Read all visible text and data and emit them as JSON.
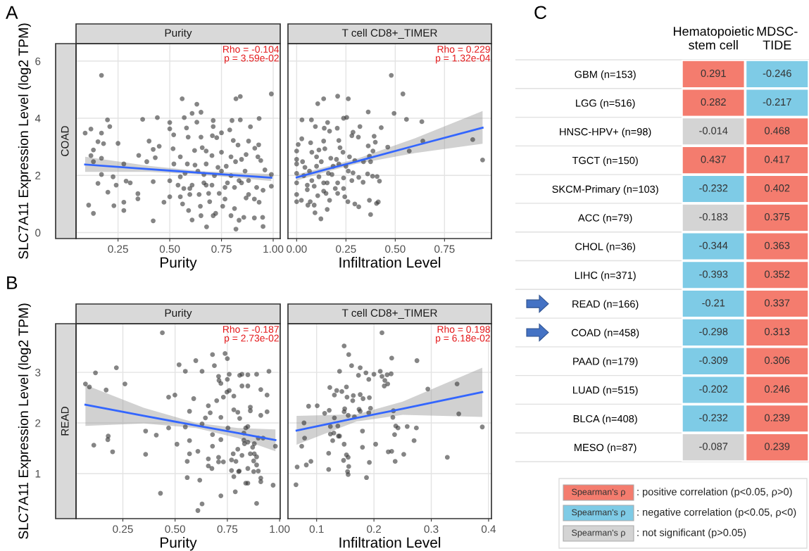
{
  "chart_data": [
    {
      "type": "scatter",
      "title": "A",
      "subtitle": "Purity",
      "xlabel": "Purity",
      "ylabel": "SLC7A11 Expression Level (log2 TPM)",
      "annotations": [
        "Rho = -0.104\np = 3.59e-02",
        "COAD"
      ],
      "xlim": [
        0.047,
        1.034
      ],
      "ylim": [
        -0.21,
        6.61
      ],
      "xticks": [
        {
          "value": 0.25,
          "label": "0.25"
        },
        {
          "value": 0.5,
          "label": "0.50"
        },
        {
          "value": 0.75,
          "label": "0.75"
        },
        {
          "value": 1.0,
          "label": "1.00"
        }
      ],
      "yticks": [
        0,
        2,
        4,
        6
      ],
      "grid": true,
      "series": [
        {
          "type": "scatter",
          "color": "#333333",
          "marker": "circle",
          "x": [
            0.091,
            0.119,
            0.17,
            0.17,
            0.199,
            0.21,
            0.131,
            0.153,
            0.18,
            0.25,
            0.17,
            0.119,
            0.131,
            0.17,
            0.153,
            0.201,
            0.226,
            0.241,
            0.108,
            0.131,
            0.23,
            0.278,
            0.278,
            0.289,
            0.309,
            0.278,
            0.35,
            0.369,
            0.4,
            0.389,
            0.346,
            0.346,
            0.42,
            0.42,
            0.44,
            0.42,
            0.449,
            0.43,
            0.472,
            0.5,
            0.5,
            0.519,
            0.5,
            0.5,
            0.52,
            0.516,
            0.56,
            0.57,
            0.581,
            0.589,
            0.551,
            0.551,
            0.54,
            0.551,
            0.562,
            0.591,
            0.608,
            0.608,
            0.631,
            0.651,
            0.631,
            0.651,
            0.657,
            0.62,
            0.622,
            0.608,
            0.597,
            0.648,
            0.651,
            0.678,
            0.676,
            0.71,
            0.71,
            0.706,
            0.727,
            0.75,
            0.79,
            0.801,
            0.82,
            0.841,
            0.841,
            0.89,
            0.932,
            0.991,
            0.807,
            0.83,
            0.881,
            0.93,
            0.911,
            0.926,
            0.94,
            0.96,
            0.991,
            0.991,
            0.951,
            0.92,
            0.881,
            0.869,
            0.858,
            0.82,
            0.835,
            0.909,
            0.949,
            0.951,
            0.932,
            0.909,
            0.813,
            0.796,
            0.767,
            0.756,
            0.739,
            0.722,
            0.71,
            0.693,
            0.704,
            0.676,
            0.75,
            0.733,
            0.716,
            0.773,
            0.796,
            0.818,
            0.847,
            0.864,
            0.847,
            0.813,
            0.779,
            0.767,
            0.796,
            0.835,
            0.881,
            0.869,
            0.75,
            0.704,
            0.676,
            0.665,
            0.636,
            0.585,
            0.574,
            0.568,
            0.597,
            0.642,
            0.665,
            0.688
          ],
          "values": [
            3.48,
            3.62,
            5.5,
            3.48,
            3.94,
            3.71,
            2.89,
            3.18,
            3.11,
            3.12,
            2.6,
            2.69,
            2.48,
            2.03,
            1.72,
            1.41,
            1.95,
            1.66,
            0.96,
            0.67,
            0.94,
            1.06,
            0.77,
            1.8,
            1.74,
            2.4,
            2.7,
            3.96,
            3.2,
            2.48,
            1.18,
            1.36,
            0.41,
            1.78,
            4.02,
            2.91,
            3.02,
            2.62,
            1.06,
            3.85,
            3.63,
            3.42,
            1.81,
            1.25,
            2.4,
            2.93,
            4.68,
            4.02,
            3.66,
            3.34,
            2.65,
            1.95,
            1.66,
            1.25,
            1.0,
            0.77,
            0.44,
            4.17,
            4.49,
            4.21,
            3.86,
            3.34,
            2.97,
            2.87,
            2.36,
            1.66,
            1.33,
            0.92,
            0.59,
            0.2,
            2.85,
            3.92,
            3.71,
            3.39,
            3.32,
            3.49,
            3.59,
            3.92,
            4.68,
            4.76,
            3.94,
            3.7,
            3.99,
            4.85,
            3.22,
            3.06,
            3.2,
            3.07,
            2.95,
            2.65,
            2.52,
            2.19,
            2.03,
            1.62,
            1.48,
            1.58,
            1.33,
            1.21,
            0.53,
            0.12,
            0.43,
            0.51,
            0.53,
            0.21,
            1.06,
            1.17,
            0.84,
            0.59,
            1.17,
            0.92,
            1.37,
            0.67,
            0.59,
            1.08,
            1.66,
            1.66,
            2.15,
            2.28,
            1.99,
            2.32,
            2.65,
            2.48,
            2.56,
            2.15,
            1.74,
            1.58,
            1.74,
            1.58,
            1.99,
            1.82,
            1.82,
            2.73,
            2.81,
            2.69,
            2.4,
            2.03,
            2.15,
            2.4,
            2.07,
            1.54,
            1.54,
            1.33,
            1.74,
            1.37
          ]
        },
        {
          "type": "line",
          "color": "#3366ff",
          "x": [
            0.091,
            0.4,
            0.65,
            0.991
          ],
          "values": [
            2.38,
            2.22,
            2.09,
            1.92
          ],
          "lower": [
            2.12,
            2.12,
            2.03,
            1.8
          ],
          "upper": [
            2.65,
            2.33,
            2.15,
            2.05
          ]
        }
      ]
    },
    {
      "type": "scatter",
      "subtitle": "T cell CD8+_TIMER",
      "xlabel": "Infiltration Level",
      "annotations": [
        "Rho = 0.229\np = 1.32e-04"
      ],
      "xlim": [
        -0.044,
        0.988
      ],
      "ylim": [
        -0.21,
        6.61
      ],
      "xticks": [
        {
          "value": 0,
          "label": "0.00"
        },
        {
          "value": 0.25,
          "label": "0.25"
        },
        {
          "value": 0.5,
          "label": "0.50"
        },
        {
          "value": 0.75,
          "label": "0.75"
        }
      ],
      "yticks": [
        0,
        2,
        4,
        6
      ],
      "grid": true,
      "tick_labels": "x",
      "series": [
        {
          "type": "scatter",
          "color": "#333333",
          "marker": "circle",
          "x": [
            0.48,
            0.539,
            0.494,
            0.363,
            0.557,
            0.635,
            0.429,
            0.321,
            0.107,
            0.137,
            0.208,
            0.262,
            0.027,
            0.075,
            0.238,
            0.254,
            0.095,
            0.14,
            0.157,
            0.206,
            0.167,
            0.026,
            0.008,
            0.071,
            0.137,
            0.214,
            0.28,
            0.286,
            0.313,
            0.393,
            0.399,
            0.363,
            0.462,
            0.571,
            0.64,
            0.893,
            0.943,
            0.375,
            0.369,
            0.387,
            0.295,
            0.262,
            0.286,
            0.315,
            0.337,
            0.36,
            0.385,
            0.408,
            0.42,
            0.375,
            0.369,
            0.405,
            0.414,
            0.315,
            0.295,
            0.26,
            0.244,
            0.208,
            0.167,
            0.155,
            0.123,
            0.093,
            0.057,
            0.0,
            0.0,
            0.0,
            0.0,
            0.0,
            0.0,
            0.0,
            0.03,
            0.042,
            0.065,
            0.054,
            0.089,
            0.107,
            0.137,
            0.161,
            0.185,
            0.202,
            0.235,
            0.22,
            0.101,
            0.113,
            0.143,
            0.077,
            0.179,
            0.208,
            0.238,
            0.196,
            0.137,
            0.077,
            0.036,
            0.101,
            0.125,
            0.173,
            0.214,
            0.268,
            0.25,
            0.339,
            0.28,
            0.238,
            0.155,
            0.113,
            0.054,
            0.024,
            0.069,
            0.089,
            0.149
          ],
          "values": [
            5.5,
            4.85,
            4.17,
            4.22,
            3.96,
            3.88,
            3.67,
            3.71,
            4.51,
            4.68,
            4.77,
            4.68,
            3.94,
            3.94,
            4.0,
            4.03,
            3.71,
            3.65,
            3.85,
            3.65,
            3.55,
            3.28,
            3.08,
            3.14,
            3.2,
            3.22,
            3.39,
            3.51,
            3.34,
            3.37,
            3.16,
            3.03,
            2.99,
            2.85,
            3.2,
            3.25,
            2.54,
            2.48,
            2.67,
            2.85,
            2.52,
            2.15,
            2.09,
            1.93,
            1.76,
            2.05,
            1.97,
            1.96,
            1.8,
            0.63,
            1.13,
            1.02,
            1.07,
            0.9,
            1.0,
            1.08,
            1.25,
            1.37,
            1.13,
            0.81,
            0.48,
            0.69,
            0.96,
            1.08,
            1.33,
            1.74,
            2.07,
            2.4,
            2.56,
            2.85,
            2.48,
            2.28,
            2.15,
            1.66,
            1.62,
            1.29,
            1.74,
            2.07,
            2.32,
            2.56,
            2.81,
            2.97,
            2.65,
            2.89,
            2.93,
            2.81,
            2.03,
            1.74,
            1.91,
            1.54,
            1.45,
            1.82,
            1.99,
            2.32,
            2.48,
            2.6,
            2.4,
            2.65,
            2.32,
            2.48,
            1.82,
            1.54,
            1.74,
            1.95,
            1.5,
            1.13,
            1.08,
            0.96,
            1.37
          ]
        },
        {
          "type": "line",
          "color": "#3366ff",
          "x": [
            0.0,
            0.15,
            0.3,
            0.6,
            0.943
          ],
          "values": [
            1.93,
            2.21,
            2.48,
            3.04,
            3.67
          ],
          "lower": [
            1.82,
            2.12,
            2.4,
            2.78,
            3.11
          ],
          "upper": [
            2.03,
            2.3,
            2.57,
            3.3,
            4.25
          ]
        }
      ]
    },
    {
      "type": "scatter",
      "title": "B",
      "subtitle": "Purity",
      "xlabel": "Purity",
      "ylabel": "SLC7A11 Expression Level (log2 TPM)",
      "annotations": [
        "Rho = -0.187\np = 2.73e-02",
        "READ"
      ],
      "xlim": [
        0.026,
        1.003
      ],
      "ylim": [
        0.11,
        3.96
      ],
      "xticks": [
        {
          "value": 0.25,
          "label": "0.25"
        },
        {
          "value": 0.5,
          "label": "0.50"
        },
        {
          "value": 0.75,
          "label": "0.75"
        },
        {
          "value": 1.0,
          "label": "1.00"
        }
      ],
      "yticks": [
        1,
        2,
        3
      ],
      "grid": true,
      "series": [
        {
          "type": "scatter",
          "color": "#333333",
          "marker": "circle",
          "x": [
            0.439,
            0.071,
            0.09,
            0.119,
            0.219,
            0.26,
            0.17,
            0.111,
            0.18,
            0.178,
            0.201,
            0.359,
            0.359,
            0.41,
            0.43,
            0.469,
            0.499,
            0.469,
            0.509,
            0.519,
            0.549,
            0.549,
            0.569,
            0.569,
            0.569,
            0.558,
            0.558,
            0.589,
            0.599,
            0.629,
            0.609,
            0.618,
            0.629,
            0.609,
            0.679,
            0.688,
            0.699,
            0.659,
            0.668,
            0.645,
            0.629,
            0.679,
            0.679,
            0.659,
            0.659,
            0.676,
            0.708,
            0.71,
            0.719,
            0.75,
            0.75,
            0.759,
            0.739,
            0.731,
            0.748,
            0.759,
            0.719,
            0.719,
            0.708,
            0.708,
            0.731,
            0.719,
            0.753,
            0.781,
            0.781,
            0.8,
            0.809,
            0.809,
            0.82,
            0.848,
            0.89,
            0.949,
            0.82,
            0.848,
            0.91,
            0.94,
            0.94,
            0.91,
            0.86,
            0.86,
            0.838,
            0.848,
            0.829,
            0.829,
            0.832,
            0.848,
            0.871,
            0.879,
            0.898,
            0.921,
            0.98,
            0.969,
            0.778,
            0.8,
            0.77,
            0.791,
            0.82,
            0.86,
            0.879,
            0.89,
            0.876,
            0.89,
            0.848,
            0.876,
            0.898,
            0.91,
            0.91,
            0.848,
            0.838,
            0.788,
            0.781,
            0.804,
            0.77,
            0.89,
            0.807
          ],
          "values": [
            3.78,
            2.77,
            2.71,
            2.99,
            3.09,
            2.77,
            2.65,
            1.56,
            1.74,
            1.67,
            1.43,
            1.84,
            1.38,
            1.76,
            0.61,
            2.51,
            2.55,
            1.9,
            1.58,
            3.15,
            3.02,
            1.92,
            2.23,
            1.65,
            1.39,
            1.24,
            0.92,
            2.48,
            3.23,
            3.02,
            1.44,
            0.87,
            0.4,
            0.27,
            3.35,
            3.13,
            2.44,
            2.34,
            2.2,
            2.1,
            1.98,
            1.77,
            1.54,
            1.29,
            1.15,
            1.1,
            2.92,
            2.84,
            2.78,
            3.27,
            2.86,
            2.96,
            3.37,
            2.51,
            2.61,
            2.64,
            2.11,
            1.67,
            1.32,
            1.23,
            1.23,
            0.56,
            1.9,
            2.53,
            2.26,
            2.21,
            2.09,
            2.94,
            2.96,
            2.95,
            2.96,
            3.02,
            2.73,
            2.73,
            2.66,
            2.55,
            2.22,
            2.15,
            2.31,
            2.24,
            1.9,
            1.93,
            1.8,
            1.66,
            1.59,
            1.62,
            1.52,
            1.59,
            1.7,
            1.7,
            1.54,
            0.77,
            1.39,
            1.48,
            1.27,
            1.24,
            1.36,
            1.39,
            1.39,
            1.33,
            1.25,
            1.17,
            1.1,
            1.04,
            1.05,
            0.91,
            0.84,
            0.81,
            0.81,
            0.64,
            0.94,
            1.04,
            1.06,
            0.41,
            1.05
          ]
        },
        {
          "type": "line",
          "color": "#3366ff",
          "x": [
            0.071,
            0.35,
            0.6,
            0.8,
            0.98
          ],
          "values": [
            2.36,
            2.14,
            1.95,
            1.8,
            1.66
          ],
          "lower": [
            1.94,
            1.99,
            1.9,
            1.7,
            1.44
          ],
          "upper": [
            2.75,
            2.3,
            2.0,
            1.9,
            1.87
          ]
        }
      ]
    },
    {
      "type": "scatter",
      "subtitle": "T cell CD8+_TIMER",
      "xlabel": "Infiltration Level",
      "annotations": [
        "Rho = 0.198\np = 6.18e-02"
      ],
      "xlim": [
        0.05,
        0.405
      ],
      "ylim": [
        0.11,
        3.96
      ],
      "xticks": [
        0.1,
        0.2,
        0.3,
        0.4
      ],
      "yticks": [
        1,
        2,
        3
      ],
      "grid": true,
      "tick_labels": "x",
      "series": [
        {
          "type": "scatter",
          "color": "#333333",
          "marker": "circle",
          "x": [
            0.214,
            0.148,
            0.156,
            0.231,
            0.275,
            0.161,
            0.176,
            0.14,
            0.173,
            0.186,
            0.191,
            0.2,
            0.211,
            0.214,
            0.223,
            0.23,
            0.219,
            0.224,
            0.218,
            0.123,
            0.135,
            0.144,
            0.152,
            0.131,
            0.153,
            0.164,
            0.163,
            0.176,
            0.181,
            0.192,
            0.294,
            0.345,
            0.348,
            0.389,
            0.086,
            0.101,
            0.114,
            0.122,
            0.131,
            0.149,
            0.148,
            0.155,
            0.166,
            0.174,
            0.176,
            0.191,
            0.194,
            0.234,
            0.233,
            0.078,
            0.079,
            0.074,
            0.124,
            0.137,
            0.13,
            0.124,
            0.128,
            0.138,
            0.14,
            0.148,
            0.18,
            0.18,
            0.203,
            0.238,
            0.242,
            0.236,
            0.258,
            0.274,
            0.27,
            0.225,
            0.231,
            0.252,
            0.328,
            0.237,
            0.152,
            0.155,
            0.147,
            0.121,
            0.09,
            0.082,
            0.066,
            0.064,
            0.121,
            0.156,
            0.154,
            0.155,
            0.192,
            0.187
          ],
          "values": [
            3.78,
            3.52,
            3.35,
            3.28,
            3.23,
            3.13,
            3.09,
            3.02,
            2.94,
            2.99,
            2.86,
            2.96,
            3.02,
            2.92,
            2.95,
            2.97,
            2.84,
            2.77,
            2.73,
            2.7,
            2.64,
            2.62,
            2.71,
            2.55,
            2.51,
            2.54,
            2.44,
            2.56,
            2.48,
            2.5,
            2.67,
            2.77,
            2.18,
            1.92,
            2.33,
            2.34,
            2.19,
            2.25,
            2.1,
            2.28,
            2.22,
            2.15,
            2.12,
            2.27,
            2.23,
            2.2,
            2.29,
            2.24,
            2.11,
            2.0,
            1.7,
            1.54,
            1.93,
            1.94,
            1.8,
            1.78,
            1.65,
            1.74,
            1.74,
            1.58,
            1.84,
            1.52,
            1.58,
            1.94,
            1.9,
            1.77,
            1.93,
            1.9,
            1.65,
            1.43,
            1.44,
            1.38,
            1.32,
            1.24,
            1.37,
            1.32,
            1.26,
            1.4,
            1.24,
            1.17,
            1.13,
            0.78,
            1.08,
            1.14,
            1.04,
            0.98,
            1.22,
            0.92
          ]
        },
        {
          "type": "line",
          "color": "#3366ff",
          "x": [
            0.065,
            0.17,
            0.25,
            0.389
          ],
          "values": [
            1.85,
            2.1,
            2.28,
            2.61
          ],
          "lower": [
            1.57,
            2.03,
            2.16,
            2.12
          ],
          "upper": [
            2.14,
            2.17,
            2.42,
            3.09
          ]
        }
      ]
    },
    {
      "type": "heatmap",
      "title": "C",
      "categories": [
        "Hematopoietic\nstem cell",
        "MDSC-\nTIDE"
      ],
      "y_categories": [
        "GBM (n=153)",
        "LGG (n=516)",
        "HNSC-HPV+ (n=98)",
        "TGCT (n=150)",
        "SKCM-Primary (n=103)",
        "ACC (n=79)",
        "CHOL (n=36)",
        "LIHC (n=371)",
        "READ (n=166)",
        "COAD (n=458)",
        "PAAD (n=179)",
        "LUAD (n=515)",
        "BLCA (n=408)",
        "MESO (n=87)"
      ],
      "cells": [
        [
          0.291,
          -0.246
        ],
        [
          0.282,
          -0.217
        ],
        [
          -0.014,
          0.468
        ],
        [
          0.437,
          0.417
        ],
        [
          -0.232,
          0.402
        ],
        [
          -0.183,
          0.375
        ],
        [
          -0.344,
          0.363
        ],
        [
          -0.393,
          0.352
        ],
        [
          -0.21,
          0.337
        ],
        [
          -0.298,
          0.313
        ],
        [
          -0.309,
          0.306
        ],
        [
          -0.202,
          0.246
        ],
        [
          -0.232,
          0.239
        ],
        [
          -0.087,
          0.239
        ]
      ],
      "colors": [
        [
          "#f47c6e",
          "#7ecbe6"
        ],
        [
          "#f47c6e",
          "#7ecbe6"
        ],
        [
          "#d4d4d4",
          "#f47c6e"
        ],
        [
          "#f47c6e",
          "#f47c6e"
        ],
        [
          "#7ecbe6",
          "#f47c6e"
        ],
        [
          "#d4d4d4",
          "#f47c6e"
        ],
        [
          "#7ecbe6",
          "#f47c6e"
        ],
        [
          "#7ecbe6",
          "#f47c6e"
        ],
        [
          "#7ecbe6",
          "#f47c6e"
        ],
        [
          "#7ecbe6",
          "#f47c6e"
        ],
        [
          "#7ecbe6",
          "#f47c6e"
        ],
        [
          "#7ecbe6",
          "#f47c6e"
        ],
        [
          "#7ecbe6",
          "#f47c6e"
        ],
        [
          "#d4d4d4",
          "#f47c6e"
        ]
      ],
      "data_labels": true,
      "legend_title": "Spearman's ρ",
      "annotations": [
        ": positive correlation (p<0.05, ρ>0)",
        ": negative correlation (p<0.05, ρ<0)",
        ": not significant (p>0.05)"
      ]
    }
  ]
}
